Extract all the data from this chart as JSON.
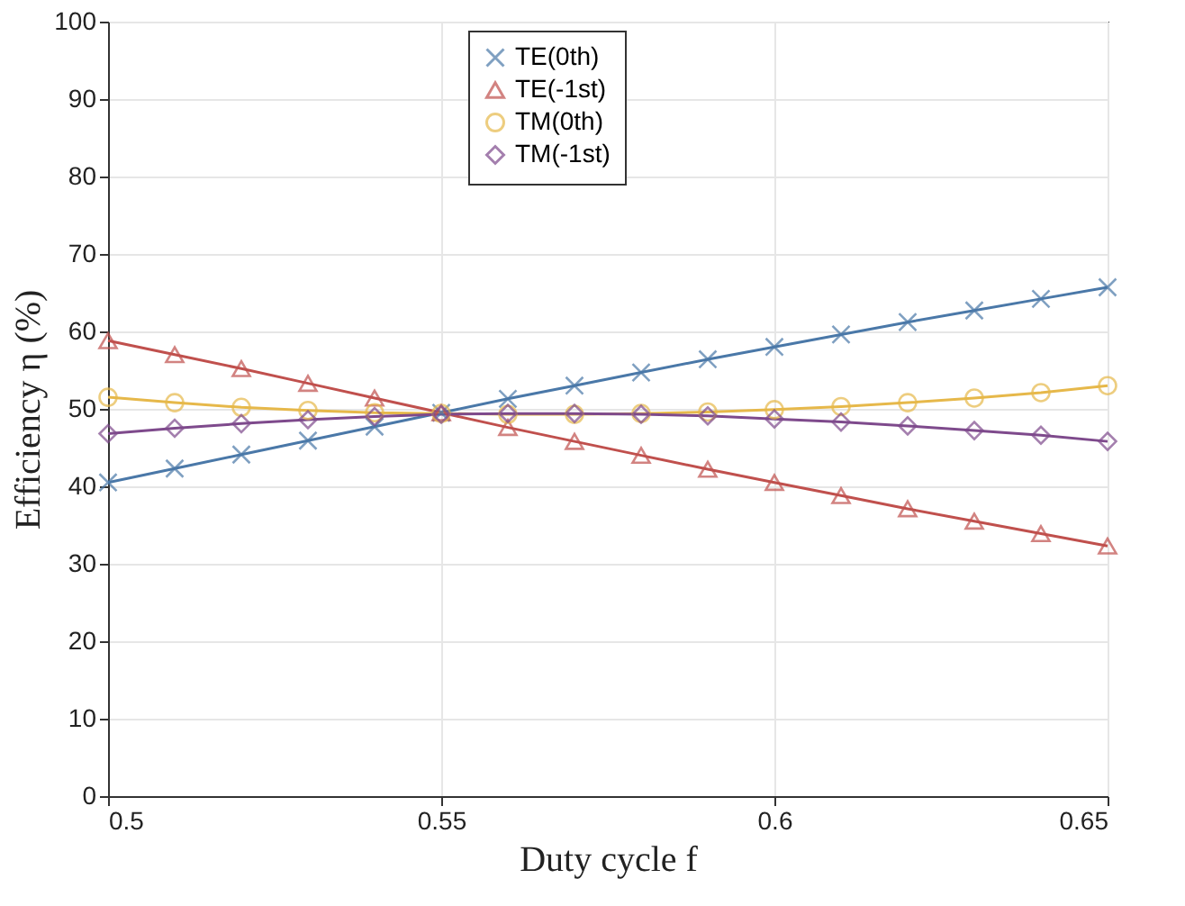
{
  "chart_data": {
    "type": "line",
    "xlabel": "Duty cycle  f",
    "ylabel": "Efficiency η (%)",
    "x": [
      0.5,
      0.51,
      0.52,
      0.53,
      0.54,
      0.55,
      0.56,
      0.57,
      0.58,
      0.59,
      0.6,
      0.61,
      0.62,
      0.63,
      0.64,
      0.65
    ],
    "series": [
      {
        "name": "TE(0th)",
        "color": "#4a78a8",
        "marker": "cross",
        "values": [
          40.5,
          42.3,
          44.1,
          45.9,
          47.7,
          49.5,
          51.3,
          53.0,
          54.7,
          56.4,
          58.0,
          59.6,
          61.2,
          62.7,
          64.2,
          65.7
        ]
      },
      {
        "name": "TE(-1st)",
        "color": "#c0504d",
        "marker": "triangle",
        "values": [
          58.8,
          57.0,
          55.2,
          53.3,
          51.4,
          49.5,
          47.6,
          45.8,
          44.0,
          42.2,
          40.5,
          38.8,
          37.1,
          35.5,
          33.9,
          32.3
        ]
      },
      {
        "name": "TM(0th)",
        "color": "#e6b84a",
        "marker": "circle",
        "values": [
          51.5,
          50.8,
          50.2,
          49.8,
          49.5,
          49.4,
          49.3,
          49.3,
          49.4,
          49.6,
          49.9,
          50.3,
          50.8,
          51.4,
          52.1,
          53.0
        ]
      },
      {
        "name": "TM(-1st)",
        "color": "#7e4a8c",
        "marker": "diamond",
        "values": [
          46.8,
          47.5,
          48.1,
          48.6,
          49.0,
          49.3,
          49.4,
          49.4,
          49.3,
          49.1,
          48.7,
          48.3,
          47.8,
          47.2,
          46.6,
          45.8
        ]
      }
    ],
    "xlim": [
      0.5,
      0.65
    ],
    "xticks": [
      0.5,
      0.55,
      0.6,
      0.65
    ],
    "ylim": [
      0,
      100
    ],
    "yticks": [
      0,
      10,
      20,
      30,
      40,
      50,
      60,
      70,
      80,
      90,
      100
    ],
    "grid": true,
    "legend": "top",
    "line_style": "solid"
  }
}
